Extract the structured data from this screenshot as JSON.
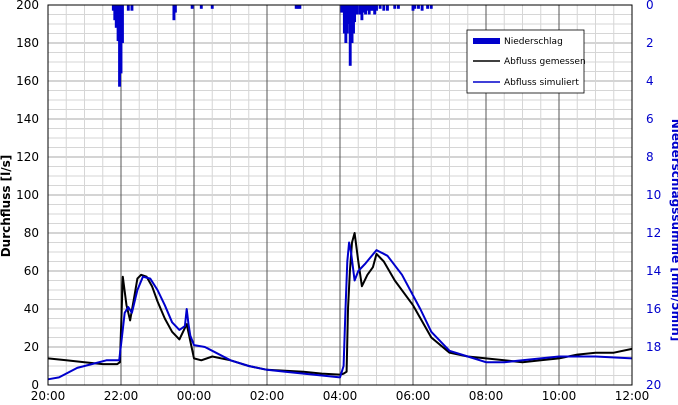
{
  "chart_data": {
    "type": "line",
    "title": "",
    "ylabel": "Durchfluss [l/s]",
    "y2label": "Niederschlagssumme [mm/5min]",
    "x_ticks": [
      "20:00",
      "22:00",
      "00:00",
      "02:00",
      "04:00",
      "06:00",
      "08:00",
      "10:00",
      "12:00"
    ],
    "y_ticks": [
      0,
      20,
      40,
      60,
      80,
      100,
      120,
      140,
      160,
      180,
      200
    ],
    "y2_ticks": [
      0,
      2,
      4,
      6,
      8,
      10,
      12,
      14,
      16,
      18,
      20
    ],
    "ylim": [
      0,
      200
    ],
    "y2lim": [
      20,
      0
    ],
    "xlim_hours": [
      0,
      16
    ],
    "x_unit": "hours since 20:00",
    "grid": true,
    "legend_position": "top-right",
    "colors": {
      "measured": "#000000",
      "simulated": "#0000cc",
      "rain": "#0000cc",
      "grid": "#bdbdbd"
    },
    "series": [
      {
        "name": "Abfluss gemessen",
        "style": "line",
        "color": "#000000",
        "x": [
          0,
          0.5,
          1,
          1.5,
          1.9,
          1.97,
          2.05,
          2.15,
          2.25,
          2.35,
          2.45,
          2.55,
          2.7,
          2.85,
          3,
          3.2,
          3.4,
          3.6,
          3.8,
          4,
          4.2,
          4.5,
          5,
          5.5,
          6,
          7,
          7.5,
          8,
          8.1,
          8.18,
          8.22,
          8.27,
          8.33,
          8.4,
          8.5,
          8.6,
          8.75,
          8.9,
          9,
          9.2,
          9.5,
          10,
          10.5,
          11,
          11.5,
          12,
          12.5,
          13,
          13.5,
          14,
          14.5,
          15,
          15.5,
          16
        ],
        "y": [
          14,
          13,
          12,
          11,
          11,
          12,
          57,
          42,
          34,
          45,
          56,
          58,
          57,
          52,
          44,
          35,
          28,
          24,
          32,
          14,
          13,
          15,
          13,
          10,
          8,
          7,
          6,
          5.5,
          6,
          7,
          40,
          60,
          75,
          80,
          65,
          52,
          58,
          62,
          69,
          65,
          55,
          42,
          25,
          17,
          15,
          14,
          13,
          12,
          13,
          14,
          16,
          17,
          17,
          19
        ]
      },
      {
        "name": "Abfluss simuliert",
        "style": "line",
        "color": "#0000cc",
        "x": [
          0,
          0.3,
          0.8,
          1.2,
          1.6,
          1.95,
          2,
          2.1,
          2.2,
          2.3,
          2.45,
          2.6,
          2.8,
          3,
          3.2,
          3.4,
          3.6,
          3.75,
          3.8,
          3.85,
          3.9,
          4,
          4.3,
          4.6,
          5,
          5.5,
          6,
          6.5,
          7,
          7.5,
          8,
          8.1,
          8.15,
          8.2,
          8.25,
          8.3,
          8.4,
          8.5,
          8.7,
          9,
          9.3,
          9.7,
          10.2,
          10.5,
          11,
          11.5,
          12,
          12.5,
          13,
          14,
          15,
          16
        ],
        "y": [
          3,
          4,
          9,
          11,
          13,
          13,
          21,
          38,
          41,
          38,
          50,
          57,
          56,
          50,
          42,
          33,
          29,
          31,
          40,
          32,
          26,
          21,
          20,
          17,
          13,
          10,
          8,
          7,
          6,
          5,
          4,
          10,
          40,
          65,
          75,
          70,
          55,
          60,
          64,
          71,
          68,
          58,
          40,
          28,
          18,
          15,
          12,
          12,
          13,
          15,
          15,
          14
        ]
      },
      {
        "name": "Niederschlag",
        "style": "bar",
        "axis": "right",
        "color": "#0000cc",
        "x": [
          1.79,
          1.83,
          1.87,
          1.92,
          1.96,
          2,
          2.04,
          2.2,
          2.3,
          3.45,
          3.49,
          3.95,
          4.2,
          4.5,
          6.8,
          6.85,
          6.9,
          8.05,
          8.12,
          8.16,
          8.2,
          8.24,
          8.28,
          8.33,
          8.37,
          8.4,
          8.46,
          8.54,
          8.6,
          8.65,
          8.7,
          8.75,
          8.8,
          8.85,
          8.9,
          8.95,
          9,
          9.1,
          9.2,
          9.3,
          9.5,
          9.6,
          10,
          10.05,
          10.15,
          10.25,
          10.4,
          10.5
        ],
        "y": [
          0.3,
          0.8,
          1.2,
          1.9,
          4.3,
          3.6,
          2.0,
          0.3,
          0.3,
          0.8,
          0.4,
          0.2,
          0.2,
          0.2,
          0.2,
          0.2,
          0.2,
          0.4,
          1.5,
          2.0,
          1.5,
          1.0,
          3.2,
          2.0,
          1.5,
          0.9,
          0.5,
          0.5,
          0.8,
          0.4,
          0.5,
          0.3,
          0.5,
          0.3,
          0.3,
          0.5,
          0.3,
          0.2,
          0.3,
          0.3,
          0.2,
          0.2,
          0.3,
          0.2,
          0.2,
          0.3,
          0.2,
          0.2
        ]
      }
    ]
  }
}
